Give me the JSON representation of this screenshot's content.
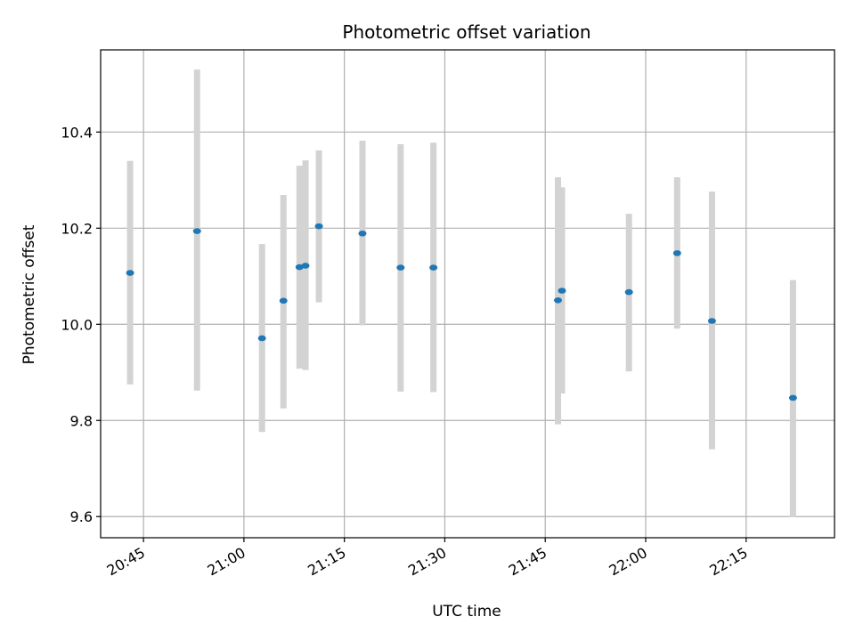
{
  "chart_data": {
    "type": "scatter",
    "title": "Photometric offset variation",
    "xlabel": "UTC time",
    "ylabel": "Photometric offset",
    "x_ticks": [
      "20:45",
      "21:00",
      "21:15",
      "21:30",
      "21:45",
      "22:00",
      "22:15"
    ],
    "y_ticks": [
      9.6,
      9.8,
      10.0,
      10.2,
      10.4
    ],
    "xlim": [
      "20:38.6",
      "22:28.2"
    ],
    "ylim": [
      9.556,
      10.571
    ],
    "grid": true,
    "colors": {
      "point": "#1f77b4",
      "errorbar": "#d3d3d3",
      "grid": "#b0b0b0"
    },
    "points": [
      {
        "x": "20:43",
        "y": 10.107,
        "ylow": 9.875,
        "yhigh": 10.34
      },
      {
        "x": "20:53",
        "y": 10.194,
        "ylow": 9.862,
        "yhigh": 10.53
      },
      {
        "x": "21:02.7",
        "y": 9.971,
        "ylow": 9.776,
        "yhigh": 10.167
      },
      {
        "x": "21:05.9",
        "y": 10.049,
        "ylow": 9.825,
        "yhigh": 10.269
      },
      {
        "x": "21:08.3",
        "y": 10.119,
        "ylow": 9.908,
        "yhigh": 10.33
      },
      {
        "x": "21:09.2",
        "y": 10.122,
        "ylow": 9.905,
        "yhigh": 10.341
      },
      {
        "x": "21:11.2",
        "y": 10.204,
        "ylow": 10.046,
        "yhigh": 10.362
      },
      {
        "x": "21:17.7",
        "y": 10.189,
        "ylow": 9.998,
        "yhigh": 10.382
      },
      {
        "x": "21:23.4",
        "y": 10.118,
        "ylow": 9.86,
        "yhigh": 10.375
      },
      {
        "x": "21:28.3",
        "y": 10.118,
        "ylow": 9.859,
        "yhigh": 10.378
      },
      {
        "x": "21:46.9",
        "y": 10.05,
        "ylow": 9.792,
        "yhigh": 10.306
      },
      {
        "x": "21:47.5",
        "y": 10.07,
        "ylow": 9.856,
        "yhigh": 10.285
      },
      {
        "x": "21:57.5",
        "y": 10.067,
        "ylow": 9.902,
        "yhigh": 10.23
      },
      {
        "x": "22:04.7",
        "y": 10.148,
        "ylow": 9.991,
        "yhigh": 10.306
      },
      {
        "x": "22:09.9",
        "y": 10.007,
        "ylow": 9.74,
        "yhigh": 10.276
      },
      {
        "x": "22:22.0",
        "y": 9.847,
        "ylow": 9.599,
        "yhigh": 10.092
      }
    ]
  }
}
